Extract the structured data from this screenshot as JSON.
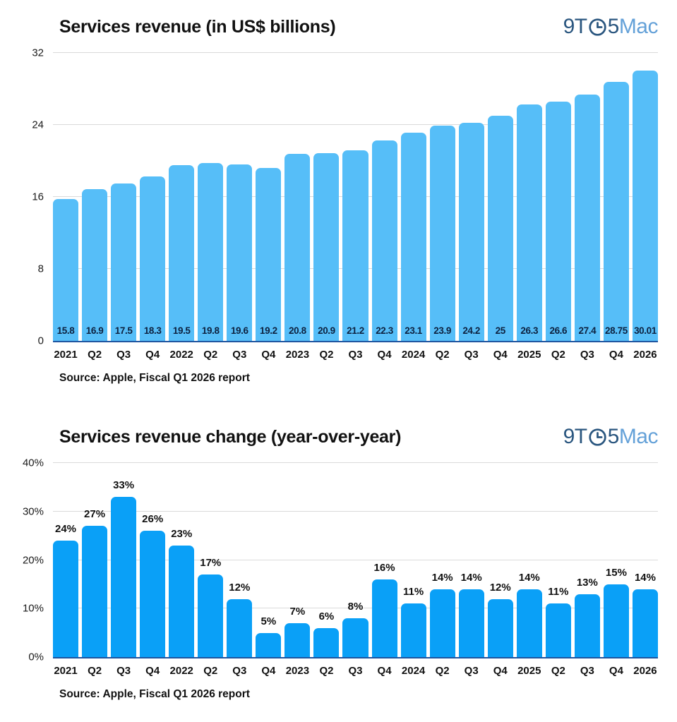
{
  "logo": {
    "part1": "9T",
    "part2": "5",
    "part3": "Mac",
    "color_dark": "#2A567F",
    "color_light": "#64A1D8"
  },
  "chart_data": [
    {
      "type": "bar",
      "title": "Services revenue (in US$ billions)",
      "source": "Source: Apple, Fiscal Q1 2026 report",
      "categories": [
        "2021",
        "Q2",
        "Q3",
        "Q4",
        "2022",
        "Q2",
        "Q3",
        "Q4",
        "2023",
        "Q2",
        "Q3",
        "Q4",
        "2024",
        "Q2",
        "Q3",
        "Q4",
        "2025",
        "Q2",
        "Q3",
        "Q4",
        "2026"
      ],
      "values": [
        15.8,
        16.9,
        17.5,
        18.3,
        19.5,
        19.8,
        19.6,
        19.2,
        20.8,
        20.9,
        21.2,
        22.3,
        23.1,
        23.9,
        24.2,
        25,
        26.3,
        26.6,
        27.4,
        28.75,
        30.01
      ],
      "value_labels": [
        "15.8",
        "16.9",
        "17.5",
        "18.3",
        "19.5",
        "19.8",
        "19.6",
        "19.2",
        "20.8",
        "20.9",
        "21.2",
        "22.3",
        "23.1",
        "23.9",
        "24.2",
        "25",
        "26.3",
        "26.6",
        "27.4",
        "28.75",
        "30.01"
      ],
      "label_position": "inside-bottom",
      "ylim": [
        0,
        32
      ],
      "yticks": [
        0,
        8,
        16,
        24,
        32
      ],
      "ytick_labels": [
        "0",
        "8",
        "16",
        "24",
        "32"
      ],
      "grid": true,
      "legend": "none",
      "bar_color": "#56BEF8",
      "axis_color": "#1E55A0",
      "grid_color": "#dadada"
    },
    {
      "type": "bar",
      "title": "Services revenue change (year-over-year)",
      "source": "Source: Apple, Fiscal Q1 2026 report",
      "categories": [
        "2021",
        "Q2",
        "Q3",
        "Q4",
        "2022",
        "Q2",
        "Q3",
        "Q4",
        "2023",
        "Q2",
        "Q3",
        "Q4",
        "2024",
        "Q2",
        "Q3",
        "Q4",
        "2025",
        "Q2",
        "Q3",
        "Q4",
        "2026"
      ],
      "values": [
        24,
        27,
        33,
        26,
        23,
        17,
        12,
        5,
        7,
        6,
        8,
        16,
        11,
        14,
        14,
        12,
        14,
        11,
        13,
        15,
        14
      ],
      "value_labels": [
        "24%",
        "27%",
        "33%",
        "26%",
        "23%",
        "17%",
        "12%",
        "5%",
        "7%",
        "6%",
        "8%",
        "16%",
        "11%",
        "14%",
        "14%",
        "12%",
        "14%",
        "11%",
        "13%",
        "15%",
        "14%"
      ],
      "label_position": "above",
      "ylim": [
        0,
        40
      ],
      "yticks": [
        0,
        10,
        20,
        30,
        40
      ],
      "ytick_labels": [
        "0%",
        "10%",
        "20%",
        "30%",
        "40%"
      ],
      "grid": true,
      "legend": "none",
      "bar_color": "#0AA0F7",
      "axis_color": "#1E55A0",
      "grid_color": "#dadada"
    }
  ]
}
